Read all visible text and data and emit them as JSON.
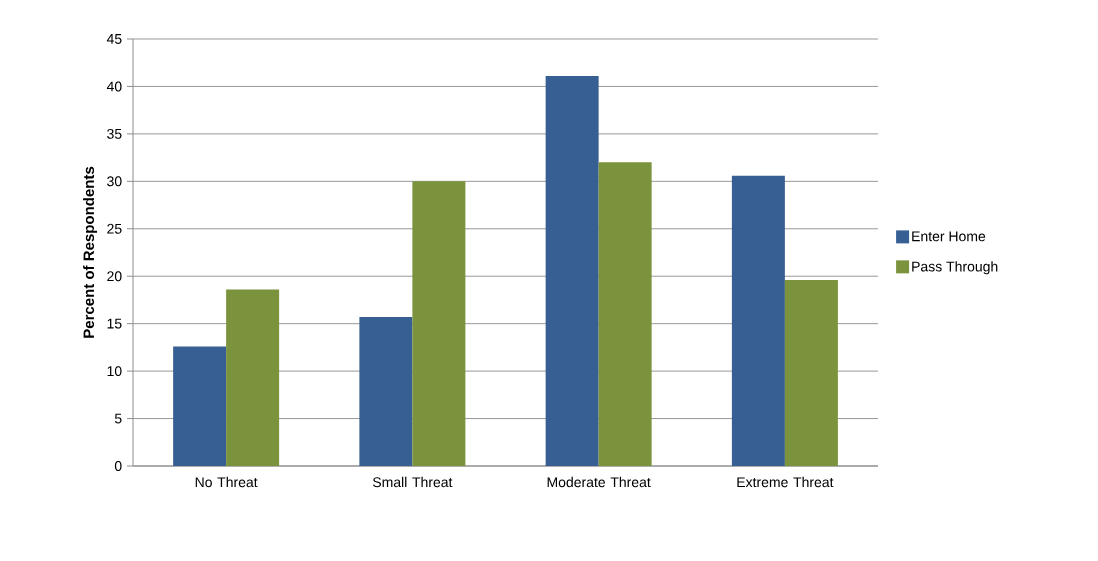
{
  "chart_data": {
    "type": "bar",
    "ylabel": "Percent of Respondents",
    "categories": [
      "No Threat",
      "Small Threat",
      "Moderate Threat",
      "Extreme Threat"
    ],
    "series": [
      {
        "name": "Enter Home",
        "color": "#375f93",
        "values": [
          12.6,
          15.7,
          41.1,
          30.6
        ]
      },
      {
        "name": "Pass Through",
        "color": "#7a933c",
        "values": [
          18.6,
          30.0,
          32.0,
          19.6
        ]
      }
    ],
    "ylim": [
      0,
      45
    ],
    "yticks": [
      0,
      5,
      10,
      15,
      20,
      25,
      30,
      35,
      40,
      45
    ],
    "grid": "y",
    "legend": "right"
  }
}
